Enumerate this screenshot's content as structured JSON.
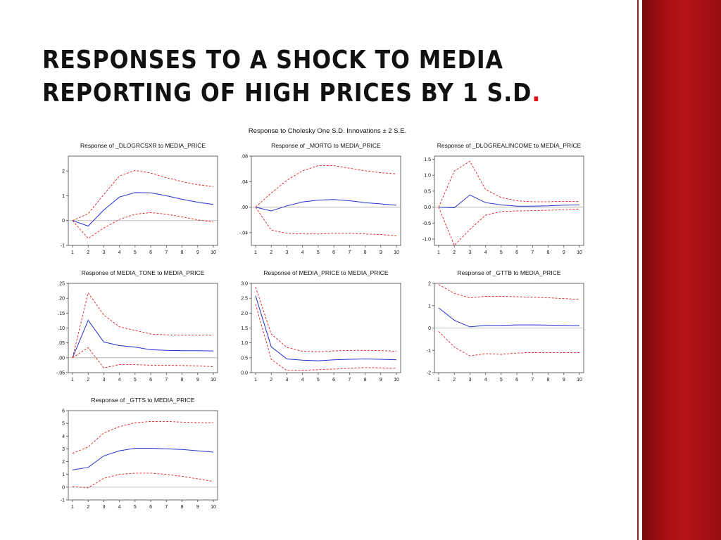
{
  "slide": {
    "title_line1": "RESPONSES TO A SHOCK TO MEDIA",
    "title_line2": "REPORTING OF HIGH PRICES BY 1 S.D",
    "title_dot": "."
  },
  "chart_data": {
    "supertitle": "Response to Cholesky One S.D. Innovations ± 2 S.E.",
    "colors": {
      "response": "#2233cc",
      "band": "#e02020",
      "zero_line": "#aaaaaa"
    },
    "panels": [
      {
        "type": "line",
        "title": "Response of _DLOGRCSXR to MEDIA_PRICE",
        "x": [
          1,
          2,
          3,
          4,
          5,
          6,
          7,
          8,
          9,
          10
        ],
        "ylim": [
          -1,
          2.6
        ],
        "yticks": [
          -1,
          0,
          1,
          2
        ],
        "ytick_labels": [
          "-1",
          "0",
          "1",
          "2"
        ],
        "series": [
          {
            "values": [
              0,
              -0.22,
              0.43,
              0.95,
              1.13,
              1.12,
              1.0,
              0.86,
              0.74,
              0.65
            ]
          },
          {
            "values": [
              0,
              0.28,
              1.05,
              1.8,
              2.02,
              1.92,
              1.73,
              1.57,
              1.45,
              1.37
            ]
          },
          {
            "values": [
              0,
              -0.72,
              -0.3,
              0.05,
              0.26,
              0.32,
              0.26,
              0.15,
              0.03,
              -0.06
            ]
          }
        ]
      },
      {
        "type": "line",
        "title": "Response of _MORTG to MEDIA_PRICE",
        "x": [
          1,
          2,
          3,
          4,
          5,
          6,
          7,
          8,
          9,
          10
        ],
        "ylim": [
          -0.06,
          0.08
        ],
        "yticks": [
          -0.04,
          0.0,
          0.04,
          0.08
        ],
        "ytick_labels": [
          "-.04",
          ".00",
          ".04",
          ".08"
        ],
        "series": [
          {
            "values": [
              0,
              -0.006,
              0.002,
              0.008,
              0.011,
              0.012,
              0.01,
              0.007,
              0.005,
              0.003
            ]
          },
          {
            "values": [
              0,
              0.022,
              0.042,
              0.057,
              0.065,
              0.065,
              0.061,
              0.057,
              0.054,
              0.052
            ]
          },
          {
            "values": [
              0,
              -0.036,
              -0.041,
              -0.042,
              -0.042,
              -0.041,
              -0.041,
              -0.042,
              -0.043,
              -0.045
            ]
          }
        ]
      },
      {
        "type": "line",
        "title": "Response of _DLOGREALINCOME to MEDIA_PRICE",
        "x": [
          1,
          2,
          3,
          4,
          5,
          6,
          7,
          8,
          9,
          10
        ],
        "ylim": [
          -1.2,
          1.6
        ],
        "yticks": [
          -1.0,
          -0.5,
          0.0,
          0.5,
          1.0,
          1.5
        ],
        "ytick_labels": [
          "-1.0",
          "-0.5",
          "0.0",
          "0.5",
          "1.0",
          "1.5"
        ],
        "series": [
          {
            "values": [
              0,
              -0.02,
              0.38,
              0.14,
              0.07,
              0.03,
              0.03,
              0.04,
              0.06,
              0.07
            ]
          },
          {
            "values": [
              0,
              1.13,
              1.44,
              0.55,
              0.3,
              0.2,
              0.17,
              0.17,
              0.18,
              0.18
            ]
          },
          {
            "values": [
              0,
              -1.2,
              -0.7,
              -0.25,
              -0.14,
              -0.12,
              -0.11,
              -0.1,
              -0.08,
              -0.06
            ]
          }
        ]
      },
      {
        "type": "line",
        "title": "Response of MEDIA_TONE to MEDIA_PRICE",
        "x": [
          1,
          2,
          3,
          4,
          5,
          6,
          7,
          8,
          9,
          10
        ],
        "ylim": [
          -0.05,
          0.25
        ],
        "yticks": [
          -0.05,
          0.0,
          0.05,
          0.1,
          0.15,
          0.2,
          0.25
        ],
        "ytick_labels": [
          "-.05",
          ".00",
          ".05",
          ".10",
          ".15",
          ".20",
          ".25"
        ],
        "series": [
          {
            "values": [
              0,
              0.126,
              0.053,
              0.041,
              0.036,
              0.027,
              0.025,
              0.024,
              0.024,
              0.023
            ]
          },
          {
            "values": [
              0,
              0.218,
              0.144,
              0.104,
              0.092,
              0.08,
              0.077,
              0.076,
              0.076,
              0.076
            ]
          },
          {
            "values": [
              0,
              0.034,
              -0.034,
              -0.023,
              -0.023,
              -0.025,
              -0.025,
              -0.026,
              -0.027,
              -0.03
            ]
          }
        ]
      },
      {
        "type": "line",
        "title": "Response of MEDIA_PRICE to MEDIA_PRICE",
        "x": [
          1,
          2,
          3,
          4,
          5,
          6,
          7,
          8,
          9,
          10
        ],
        "ylim": [
          0,
          3
        ],
        "yticks": [
          0,
          0.5,
          1,
          1.5,
          2,
          2.5,
          3
        ],
        "ytick_labels": [
          "0.0",
          "0.5",
          "1.0",
          "1.5",
          "2.0",
          "2.5",
          "3.0"
        ],
        "series": [
          {
            "values": [
              2.58,
              0.87,
              0.46,
              0.42,
              0.4,
              0.43,
              0.45,
              0.46,
              0.45,
              0.43
            ]
          },
          {
            "values": [
              2.88,
              1.3,
              0.85,
              0.72,
              0.7,
              0.73,
              0.75,
              0.75,
              0.74,
              0.72
            ]
          },
          {
            "values": [
              2.3,
              0.45,
              0.07,
              0.08,
              0.1,
              0.12,
              0.15,
              0.17,
              0.16,
              0.15
            ]
          }
        ]
      },
      {
        "type": "line",
        "title": "Response of _GTTB to MEDIA_PRICE",
        "x": [
          1,
          2,
          3,
          4,
          5,
          6,
          7,
          8,
          9,
          10
        ],
        "ylim": [
          -2,
          2
        ],
        "yticks": [
          -2,
          -1,
          0,
          1,
          2
        ],
        "ytick_labels": [
          "-2",
          "-1",
          "0",
          "1",
          "2"
        ],
        "series": [
          {
            "values": [
              0.9,
              0.35,
              0.05,
              0.12,
              0.12,
              0.14,
              0.14,
              0.13,
              0.12,
              0.1
            ]
          },
          {
            "values": [
              1.95,
              1.55,
              1.35,
              1.42,
              1.42,
              1.4,
              1.38,
              1.35,
              1.32,
              1.28
            ]
          },
          {
            "values": [
              -0.15,
              -0.85,
              -1.25,
              -1.15,
              -1.18,
              -1.12,
              -1.1,
              -1.1,
              -1.1,
              -1.1
            ]
          }
        ]
      },
      {
        "type": "line",
        "title": "Response of _GTTS to MEDIA_PRICE",
        "x": [
          1,
          2,
          3,
          4,
          5,
          6,
          7,
          8,
          9,
          10
        ],
        "ylim": [
          -1,
          6
        ],
        "yticks": [
          -1,
          0,
          1,
          2,
          3,
          4,
          5,
          6
        ],
        "ytick_labels": [
          "-1",
          "0",
          "1",
          "2",
          "3",
          "4",
          "5",
          "6"
        ],
        "series": [
          {
            "values": [
              1.35,
              1.55,
              2.45,
              2.85,
              3.05,
              3.05,
              3.0,
              2.95,
              2.85,
              2.75
            ]
          },
          {
            "values": [
              2.65,
              3.15,
              4.25,
              4.75,
              5.05,
              5.15,
              5.15,
              5.1,
              5.05,
              5.05
            ]
          },
          {
            "values": [
              0.05,
              -0.05,
              0.7,
              1.0,
              1.1,
              1.1,
              1.0,
              0.85,
              0.65,
              0.45
            ]
          }
        ]
      }
    ]
  }
}
